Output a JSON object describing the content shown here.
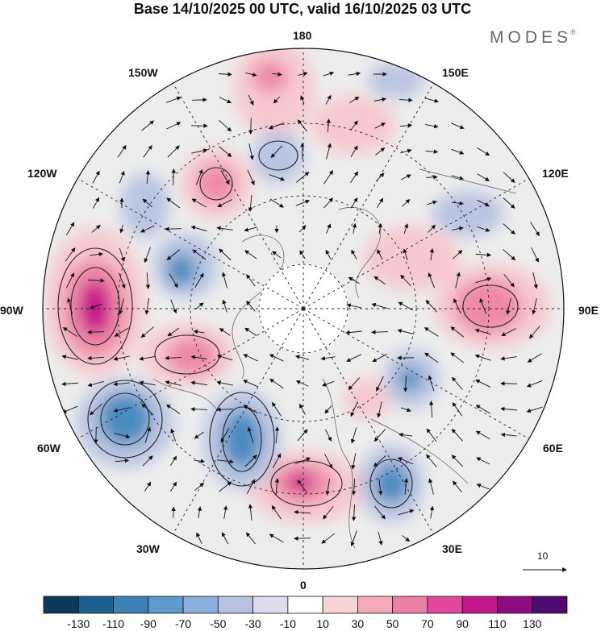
{
  "header": {
    "title": "Base 14/10/2025 00 UTC, valid 16/10/2025 03 UTC",
    "brand": "MODES",
    "brand_mark": "®"
  },
  "map": {
    "projection": "polar stereographic",
    "longitude_labels": {
      "top": "180",
      "top_right": "150E",
      "right_upper": "120E",
      "right": "90E",
      "right_lower": "60E",
      "bottom_right": "30E",
      "bottom": "0",
      "bottom_left": "30W",
      "left_lower": "60W",
      "left": "90W",
      "left_upper": "120W",
      "top_left": "150W"
    },
    "vector_scale_label": "10",
    "colors": {
      "neg_strong": "#1a4e74",
      "neg_mid": "#4a8cc0",
      "neg_light": "#b9c5e2",
      "neutral": "#ececec",
      "pos_light": "#f6c9cf",
      "pos_mid": "#ee8aa8",
      "pos_strong": "#c8178a"
    }
  },
  "colorbar": {
    "colors": [
      "#0e3a5a",
      "#1f5f8f",
      "#3f81b7",
      "#5e9bcc",
      "#8aafdc",
      "#b6c0e0",
      "#dcdcee",
      "#ffffff",
      "#f8d3d6",
      "#f2aab9",
      "#ec7fa4",
      "#e1479a",
      "#c2188b",
      "#8e0b82",
      "#4e0a6e"
    ],
    "ticks": [
      "-130",
      "-110",
      "-90",
      "-70",
      "-50",
      "-30",
      "-10",
      "10",
      "30",
      "50",
      "70",
      "90",
      "110",
      "130"
    ]
  }
}
